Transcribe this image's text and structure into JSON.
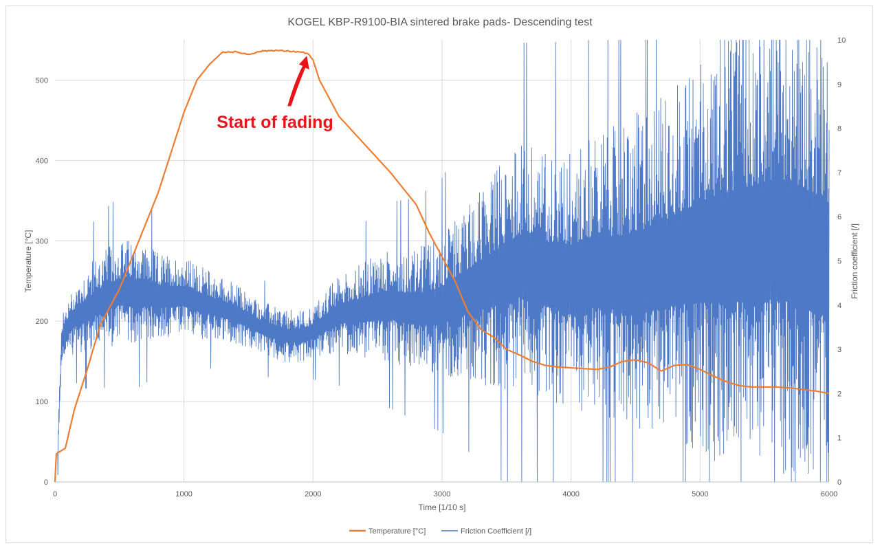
{
  "chart_data": {
    "type": "line",
    "title": "KOGEL KBP-R9100-BIA sintered brake pads- Descending test",
    "xlabel": "Time [1/10 s]",
    "ylabel": "Temperature [°C]",
    "y2label": "Friction coefficient [/]",
    "xlim": [
      0,
      6000
    ],
    "ylim": [
      0,
      550
    ],
    "y2lim": [
      0,
      10
    ],
    "x_ticks": [
      "0",
      "1000",
      "2000",
      "3000",
      "4000",
      "5000",
      "6000"
    ],
    "y_ticks": [
      "0",
      "100",
      "200",
      "300",
      "400",
      "500"
    ],
    "y2_ticks": [
      "0",
      "1",
      "2",
      "3",
      "4",
      "5",
      "6",
      "7",
      "8",
      "9",
      "10"
    ],
    "grid": true,
    "legend_position": "bottom",
    "annotation": {
      "text": "Start of fading",
      "x": 1980,
      "y": 530,
      "color": "#e8141a"
    },
    "series": [
      {
        "name": "Temperature [°C]",
        "axis": "left",
        "color": "#ed7d31",
        "x": [
          0,
          10,
          40,
          80,
          150,
          250,
          350,
          500,
          650,
          800,
          1000,
          1100,
          1200,
          1300,
          1400,
          1500,
          1600,
          1700,
          1800,
          1900,
          1960,
          2000,
          2050,
          2200,
          2400,
          2600,
          2800,
          2900,
          3000,
          3100,
          3200,
          3300,
          3400,
          3500,
          3600,
          3700,
          3800,
          3900,
          4000,
          4100,
          4200,
          4300,
          4400,
          4500,
          4600,
          4700,
          4800,
          4900,
          5000,
          5100,
          5200,
          5300,
          5400,
          5500,
          5600,
          5700,
          5800,
          5900,
          6000
        ],
        "y": [
          0,
          35,
          38,
          42,
          90,
          140,
          195,
          240,
          300,
          360,
          460,
          500,
          520,
          535,
          535,
          532,
          536,
          537,
          536,
          535,
          533,
          525,
          500,
          455,
          420,
          385,
          345,
          310,
          280,
          250,
          212,
          190,
          180,
          165,
          158,
          150,
          145,
          143,
          142,
          141,
          140,
          143,
          150,
          152,
          148,
          138,
          145,
          146,
          140,
          132,
          125,
          120,
          118,
          118,
          118,
          117,
          115,
          113,
          110
        ]
      },
      {
        "name": "Friction Coefficient [/]",
        "axis": "right",
        "color": "#4472c4",
        "x": [
          20,
          50,
          80,
          150,
          250,
          350,
          500,
          650,
          800,
          1000,
          1200,
          1400,
          1600,
          1800,
          1900,
          2000,
          2200,
          2400,
          2600,
          2800,
          3000,
          3200,
          3400,
          3600,
          3800,
          4000,
          4200,
          4400,
          4600,
          4800,
          5000,
          5200,
          5400,
          5600,
          5800,
          6000
        ],
        "y": [
          0.5,
          3.2,
          3.4,
          3.7,
          3.9,
          4.1,
          4.3,
          4.3,
          4.2,
          4.2,
          4.0,
          3.8,
          3.5,
          3.3,
          3.3,
          3.4,
          3.8,
          3.9,
          4.0,
          3.9,
          4.0,
          4.3,
          4.6,
          4.9,
          4.7,
          4.6,
          4.8,
          4.7,
          4.8,
          5.0,
          5.2,
          5.3,
          5.4,
          5.5,
          5.3,
          5.0
        ],
        "spread": [
          0.3,
          0.5,
          0.6,
          0.8,
          1.0,
          1.1,
          1.2,
          1.2,
          1.0,
          0.9,
          0.8,
          0.7,
          0.6,
          0.6,
          0.6,
          0.6,
          0.9,
          1.1,
          1.3,
          1.4,
          1.6,
          2.0,
          2.5,
          2.8,
          2.9,
          3.0,
          3.2,
          3.4,
          3.8,
          4.0,
          4.6,
          5.0,
          5.2,
          5.4,
          5.4,
          5.2
        ]
      }
    ]
  }
}
